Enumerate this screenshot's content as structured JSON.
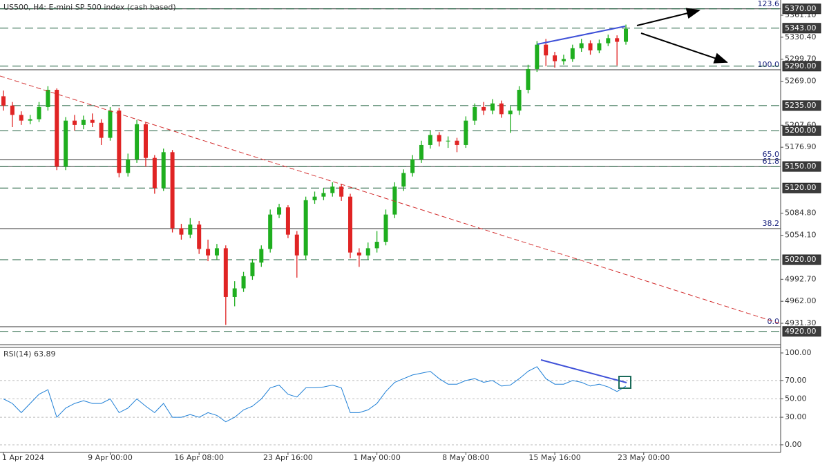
{
  "chart_data": [
    {
      "type": "candlestick",
      "title": "US500, H4:  E-mini SP 500 index (cash based)",
      "up_color": "#1fae1f",
      "down_color": "#e02424",
      "open": [
        5248,
        5235,
        5222,
        5214,
        5216,
        5233,
        5257,
        5150,
        5214,
        5208,
        5215,
        5211,
        5190,
        5228,
        5141,
        5160,
        5209,
        5162,
        5120,
        5170,
        5064,
        5055,
        5069,
        5035,
        5026,
        5036,
        4968,
        4980,
        4997,
        5016,
        5035,
        5083,
        5093,
        5055,
        5026,
        5103,
        5108,
        5113,
        5122,
        5108,
        5030,
        5026,
        5036,
        5045,
        5083,
        5122,
        5141,
        5160,
        5180,
        5194,
        5185,
        5186,
        5180,
        5214,
        5233,
        5228,
        5238,
        5223,
        5228,
        5257,
        5286,
        5320,
        5305,
        5297,
        5300,
        5315,
        5322,
        5312,
        5322,
        5329,
        5324
      ],
      "high": [
        5256,
        5240,
        5227,
        5222,
        5240,
        5262,
        5259,
        5219,
        5222,
        5221,
        5224,
        5216,
        5233,
        5232,
        5168,
        5215,
        5212,
        5166,
        5175,
        5173,
        5070,
        5078,
        5074,
        5048,
        5042,
        5040,
        4990,
        5003,
        5021,
        5040,
        5090,
        5098,
        5096,
        5060,
        5108,
        5115,
        5120,
        5128,
        5126,
        5112,
        5036,
        5044,
        5060,
        5090,
        5128,
        5146,
        5166,
        5186,
        5200,
        5198,
        5192,
        5190,
        5220,
        5238,
        5240,
        5244,
        5242,
        5234,
        5262,
        5292,
        5325,
        5328,
        5310,
        5306,
        5320,
        5328,
        5326,
        5327,
        5334,
        5333,
        5348
      ],
      "low": [
        5228,
        5205,
        5208,
        5209,
        5212,
        5228,
        5145,
        5145,
        5200,
        5202,
        5205,
        5180,
        5186,
        5135,
        5136,
        5155,
        5150,
        5112,
        5116,
        5058,
        5048,
        5050,
        5028,
        5018,
        5020,
        4929,
        4955,
        4975,
        4992,
        5010,
        5030,
        5078,
        5050,
        4995,
        5020,
        5098,
        5103,
        5108,
        5102,
        5022,
        5010,
        5020,
        5030,
        5040,
        5078,
        5116,
        5136,
        5155,
        5175,
        5178,
        5176,
        5170,
        5176,
        5208,
        5222,
        5223,
        5218,
        5197,
        5222,
        5252,
        5282,
        5290,
        5288,
        5292,
        5296,
        5310,
        5306,
        5308,
        5318,
        5291,
        5320
      ],
      "close": [
        5235,
        5222,
        5214,
        5216,
        5233,
        5257,
        5150,
        5214,
        5208,
        5215,
        5211,
        5190,
        5228,
        5141,
        5160,
        5209,
        5162,
        5120,
        5170,
        5064,
        5055,
        5069,
        5035,
        5026,
        5036,
        4968,
        4980,
        4997,
        5016,
        5035,
        5083,
        5093,
        5055,
        5026,
        5103,
        5108,
        5113,
        5122,
        5108,
        5030,
        5026,
        5036,
        5045,
        5083,
        5122,
        5141,
        5160,
        5180,
        5194,
        5185,
        5186,
        5180,
        5214,
        5233,
        5228,
        5238,
        5223,
        5228,
        5257,
        5286,
        5320,
        5305,
        5297,
        5300,
        5315,
        5322,
        5312,
        5322,
        5329,
        5324,
        5342
      ],
      "xlim": [
        -0.39,
        87.4
      ],
      "xticks": [
        {
          "value": 0,
          "label": "1 Apr 2024"
        },
        {
          "value": 12,
          "label": "9 Apr 00:00"
        },
        {
          "value": 22,
          "label": "16 Apr 08:00"
        },
        {
          "value": 32,
          "label": "23 Apr 16:00"
        },
        {
          "value": 42,
          "label": "1 May 00:00"
        },
        {
          "value": 52,
          "label": "8 May 08:00"
        },
        {
          "value": 62,
          "label": "15 May 16:00"
        },
        {
          "value": 72,
          "label": "23 May 00:00"
        }
      ],
      "ylim": [
        4903.4,
        5382.3
      ],
      "yticks": [
        {
          "value": 5361.1,
          "label": "5361.10"
        },
        {
          "value": 5330.4,
          "label": "5330.40"
        },
        {
          "value": 5299.7,
          "label": "5299.70"
        },
        {
          "value": 5269,
          "label": "5269.00"
        },
        {
          "value": 5207.6,
          "label": "5207.60"
        },
        {
          "value": 5176.9,
          "label": "5176.90"
        },
        {
          "value": 5084.8,
          "label": "5084.80"
        },
        {
          "value": 5054.1,
          "label": "5054.10"
        },
        {
          "value": 4992.7,
          "label": "4992.70"
        },
        {
          "value": 4962,
          "label": "4962.00"
        },
        {
          "value": 4931.3,
          "label": "4931.30"
        }
      ],
      "levels": [
        {
          "value": 5370,
          "label": "5370.00"
        },
        {
          "value": 5343,
          "label": "5343.00"
        },
        {
          "value": 5290,
          "label": "5290.00"
        },
        {
          "value": 5235,
          "label": "5235.00"
        },
        {
          "value": 5200,
          "label": "5200.00"
        },
        {
          "value": 5150,
          "label": "5150.00"
        },
        {
          "value": 5120,
          "label": "5120.00"
        },
        {
          "value": 5020,
          "label": "5020.00"
        },
        {
          "value": 4920,
          "label": "4920.00"
        }
      ],
      "fib_levels": [
        {
          "value": 5370,
          "label": "123.6"
        },
        {
          "value": 5285,
          "label": "100.0"
        },
        {
          "value": 5159.7,
          "label": "65.0"
        },
        {
          "value": 5150,
          "label": "61.8"
        },
        {
          "value": 5063.3,
          "label": "38.2"
        },
        {
          "value": 4926.5,
          "label": "0.0"
        }
      ]
    },
    {
      "type": "line",
      "title": "RSI(14) 63.89",
      "color": "#1e7fd6",
      "values": [
        50,
        45,
        35,
        45,
        55,
        60,
        30,
        40,
        45,
        48,
        45,
        45,
        50,
        35,
        40,
        50,
        42,
        35,
        45,
        30,
        30,
        33,
        30,
        35,
        32,
        25,
        30,
        38,
        42,
        50,
        62,
        65,
        55,
        52,
        62,
        62,
        63,
        65,
        62,
        35,
        35,
        38,
        45,
        58,
        68,
        72,
        76,
        78,
        80,
        72,
        66,
        66,
        70,
        72,
        68,
        70,
        64,
        65,
        72,
        80,
        85,
        72,
        66,
        66,
        70,
        68,
        64,
        66,
        63,
        58,
        64
      ],
      "xlim": [
        -0.39,
        87.4
      ],
      "ylim": [
        -8.3,
        106
      ],
      "yticks": [
        {
          "value": 100,
          "label": "100.00"
        },
        {
          "value": 70,
          "label": "70.00"
        },
        {
          "value": 50,
          "label": "50.00"
        },
        {
          "value": 30,
          "label": "30.00"
        },
        {
          "value": 0,
          "label": "0.00"
        }
      ]
    }
  ]
}
